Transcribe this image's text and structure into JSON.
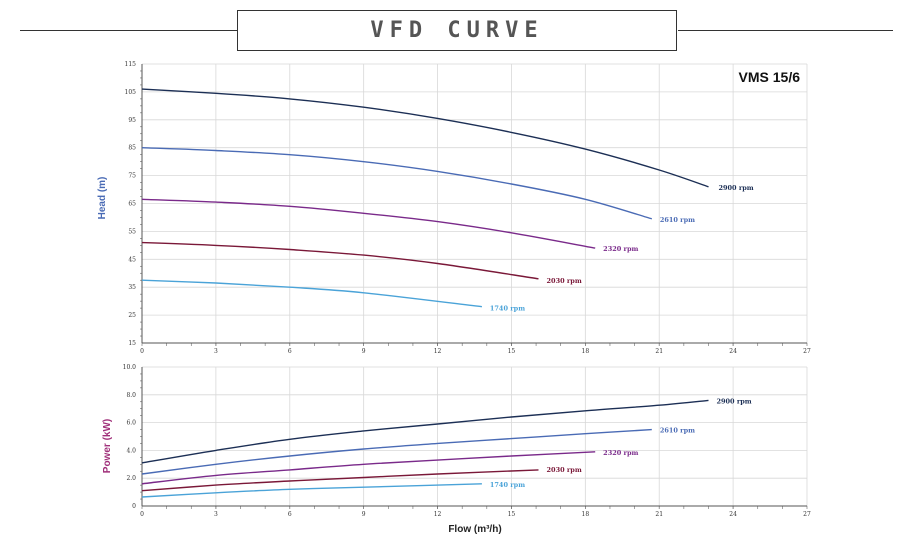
{
  "page_title": "VFD CURVE",
  "chart_data": [
    {
      "type": "line",
      "id": "head",
      "annotation": "VMS 15/6",
      "ylabel": "Head (m)",
      "xlabel": "",
      "xlim": [
        0,
        27
      ],
      "ylim": [
        15,
        115
      ],
      "x_ticks": [
        0,
        3,
        6,
        9,
        12,
        15,
        18,
        21,
        24,
        27
      ],
      "y_ticks": [
        15,
        25,
        35,
        45,
        55,
        65,
        75,
        85,
        95,
        105,
        115
      ],
      "grid": true,
      "ylabel_color": "#4a6bb5",
      "series": [
        {
          "name": "2900 rpm",
          "color": "#1c2f55",
          "x": [
            0,
            3,
            6,
            9,
            12,
            15,
            18,
            21,
            23
          ],
          "y": [
            106,
            104.5,
            102.5,
            99.5,
            95.5,
            90.5,
            84.5,
            77,
            71
          ]
        },
        {
          "name": "2610 rpm",
          "color": "#4a6bb5",
          "x": [
            0,
            3,
            6,
            9,
            12,
            15,
            18,
            20.7
          ],
          "y": [
            85,
            84,
            82.5,
            80,
            76.5,
            72,
            66.5,
            59.5
          ]
        },
        {
          "name": "2320 rpm",
          "color": "#7a2a8a",
          "x": [
            0,
            3,
            6,
            9,
            12,
            15,
            18.4
          ],
          "y": [
            66.5,
            65.5,
            64,
            61.5,
            58.5,
            54.5,
            49
          ]
        },
        {
          "name": "2030 rpm",
          "color": "#7a1838",
          "x": [
            0,
            3,
            6,
            9,
            12,
            16.1
          ],
          "y": [
            51,
            50,
            48.5,
            46.5,
            43.5,
            38
          ]
        },
        {
          "name": "1740 rpm",
          "color": "#4aa3d8",
          "x": [
            0,
            3,
            6,
            9,
            13.8
          ],
          "y": [
            37.5,
            36.5,
            35,
            33,
            28
          ]
        }
      ]
    },
    {
      "type": "line",
      "id": "power",
      "ylabel": "Power (kW)",
      "xlabel": "Flow (m³/h)",
      "xlim": [
        0,
        27
      ],
      "ylim": [
        0,
        10
      ],
      "x_ticks": [
        0,
        3,
        6,
        9,
        12,
        15,
        18,
        21,
        24,
        27
      ],
      "y_ticks": [
        "0",
        "2.0",
        "4.0",
        "6.0",
        "8.0",
        "10.0"
      ],
      "grid": true,
      "ylabel_color": "#a0307a",
      "series": [
        {
          "name": "2900 rpm",
          "color": "#1c2f55",
          "x": [
            0,
            3,
            6,
            9,
            12,
            15,
            18,
            21,
            23
          ],
          "y": [
            3.1,
            4.0,
            4.8,
            5.4,
            5.9,
            6.4,
            6.85,
            7.25,
            7.6
          ]
        },
        {
          "name": "2610 rpm",
          "color": "#4a6bb5",
          "x": [
            0,
            3,
            6,
            9,
            12,
            15,
            18,
            20.7
          ],
          "y": [
            2.3,
            3.0,
            3.6,
            4.1,
            4.5,
            4.85,
            5.2,
            5.5
          ]
        },
        {
          "name": "2320 rpm",
          "color": "#7a2a8a",
          "x": [
            0,
            3,
            6,
            9,
            12,
            15,
            18.4
          ],
          "y": [
            1.6,
            2.2,
            2.6,
            3.0,
            3.3,
            3.6,
            3.9
          ]
        },
        {
          "name": "2030 rpm",
          "color": "#7a1838",
          "x": [
            0,
            3,
            6,
            9,
            12,
            16.1
          ],
          "y": [
            1.1,
            1.5,
            1.8,
            2.05,
            2.3,
            2.6
          ]
        },
        {
          "name": "1740 rpm",
          "color": "#4aa3d8",
          "x": [
            0,
            3,
            6,
            9,
            13.8
          ],
          "y": [
            0.65,
            0.95,
            1.2,
            1.35,
            1.6
          ]
        }
      ]
    }
  ]
}
